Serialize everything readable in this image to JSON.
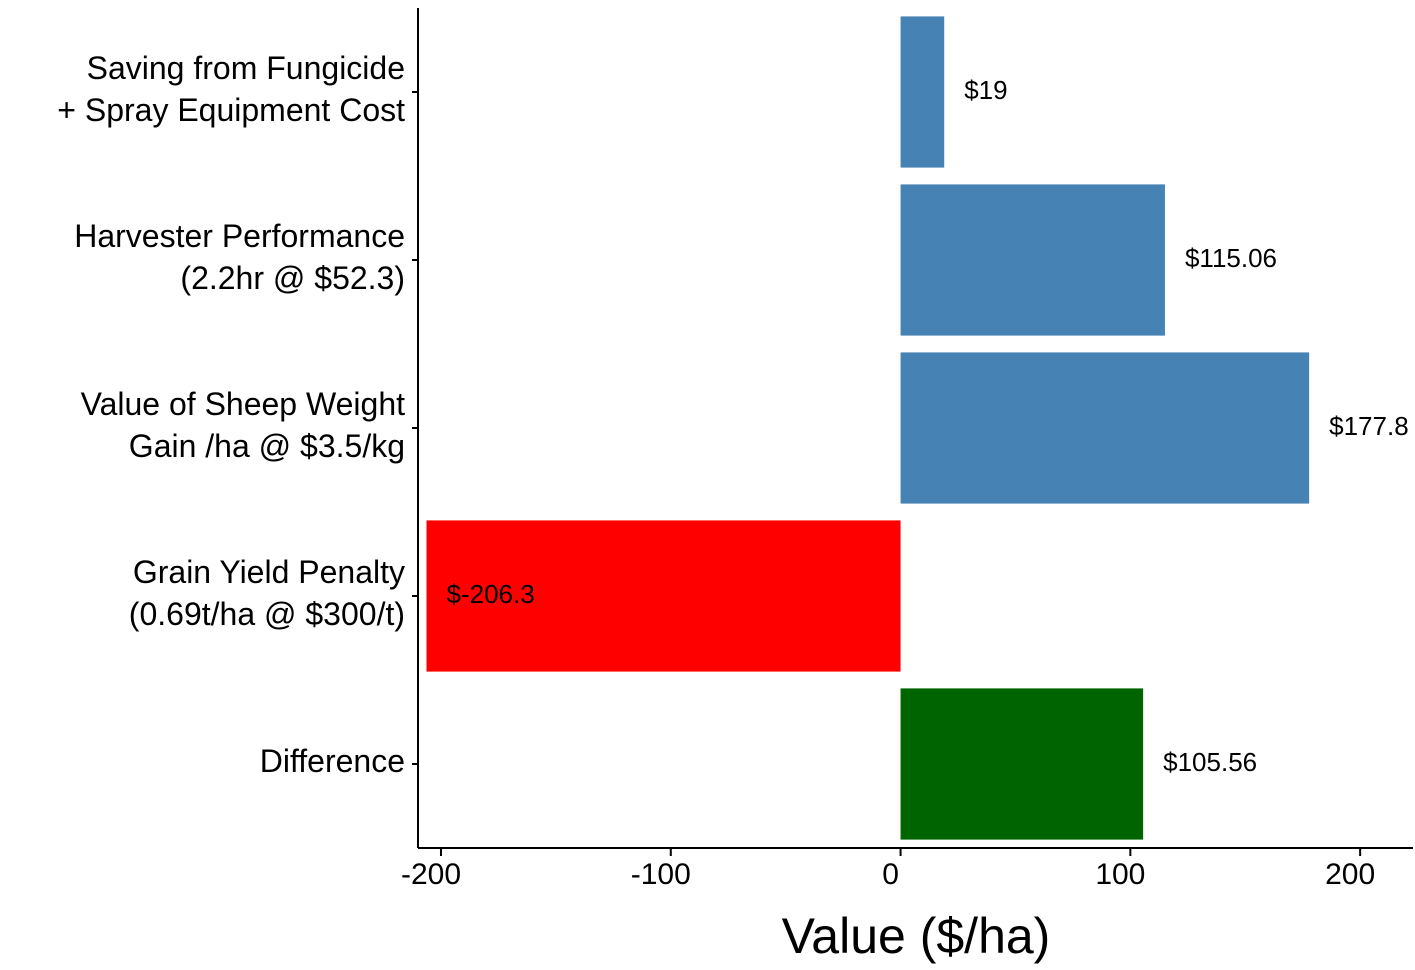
{
  "chart_data": {
    "type": "bar",
    "orientation": "horizontal",
    "x_label": "Value ($/ha)",
    "categories": [
      [
        "Saving from Fungicide",
        "+ Spray Equipment Cost"
      ],
      [
        "Harvester Performance",
        "(2.2hr @ $52.3)"
      ],
      [
        "Value of Sheep Weight",
        "Gain /ha @ $3.5/kg"
      ],
      [
        "Grain Yield Penalty",
        "(0.69t/ha @ $300/t)"
      ],
      [
        "Difference"
      ]
    ],
    "values": [
      19,
      115.06,
      177.8,
      -206.3,
      105.56
    ],
    "value_labels": [
      "$19",
      "$115.06",
      "$177.8",
      "$-206.3",
      "$105.56"
    ],
    "colors": [
      "#4682b4",
      "#4682b4",
      "#4682b4",
      "#ff0000",
      "#006400"
    ],
    "xlim": [
      -210,
      223
    ],
    "xticks": [
      -200,
      -100,
      0,
      100,
      200
    ],
    "grid": false
  }
}
